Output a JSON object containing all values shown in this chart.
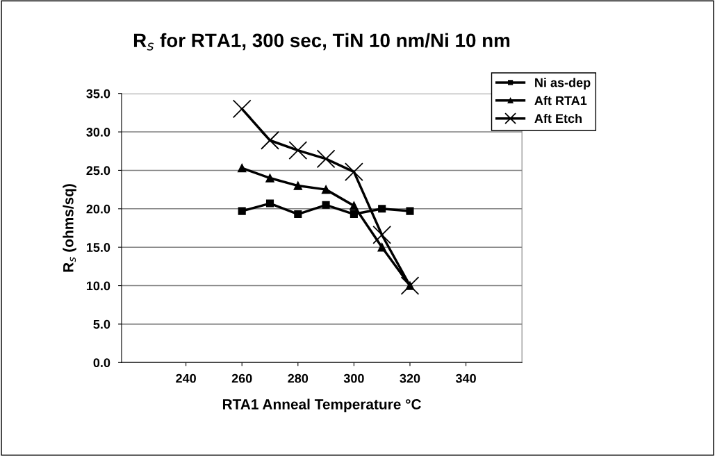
{
  "chart_data": {
    "type": "line",
    "title": "R$_{s}$ for RTA1, 300 sec, TiN 10 nm/Ni 10 nm",
    "xlabel": "RTA1 Anneal Temperature °C",
    "ylabel": "R$_{s}$ (ohms/sq)",
    "x": [
      260,
      270,
      280,
      290,
      300,
      310,
      320
    ],
    "series": [
      {
        "name": "Ni as-dep",
        "color": "#000000",
        "marker": "square",
        "values": [
          19.7,
          20.7,
          19.3,
          20.5,
          19.3,
          20.0,
          19.7
        ]
      },
      {
        "name": "Aft RTA1",
        "color": "#000000",
        "marker": "triangle",
        "values": [
          25.3,
          24.0,
          23.0,
          22.5,
          20.4,
          15.0,
          10.0
        ]
      },
      {
        "name": "Aft Etch",
        "color": "#000000",
        "marker": "cross",
        "values": [
          33.0,
          28.9,
          27.6,
          26.5,
          24.8,
          16.6,
          10.0
        ]
      }
    ],
    "xlim": [
      217,
      360
    ],
    "xticks": [
      240,
      260,
      280,
      300,
      320,
      340
    ],
    "ylim": [
      0,
      35
    ],
    "yticks": [
      {
        "value": 0,
        "label": "0.0"
      },
      {
        "value": 5,
        "label": "5.0"
      },
      {
        "value": 10,
        "label": "10.0"
      },
      {
        "value": 15,
        "label": "15.0"
      },
      {
        "value": 20,
        "label": "20.0"
      },
      {
        "value": 25,
        "label": "25.0"
      },
      {
        "value": 30,
        "label": "30.0"
      },
      {
        "value": 35,
        "label": "35.0"
      }
    ],
    "grid": "y",
    "legend": "top right",
    "line_style": "solid"
  }
}
